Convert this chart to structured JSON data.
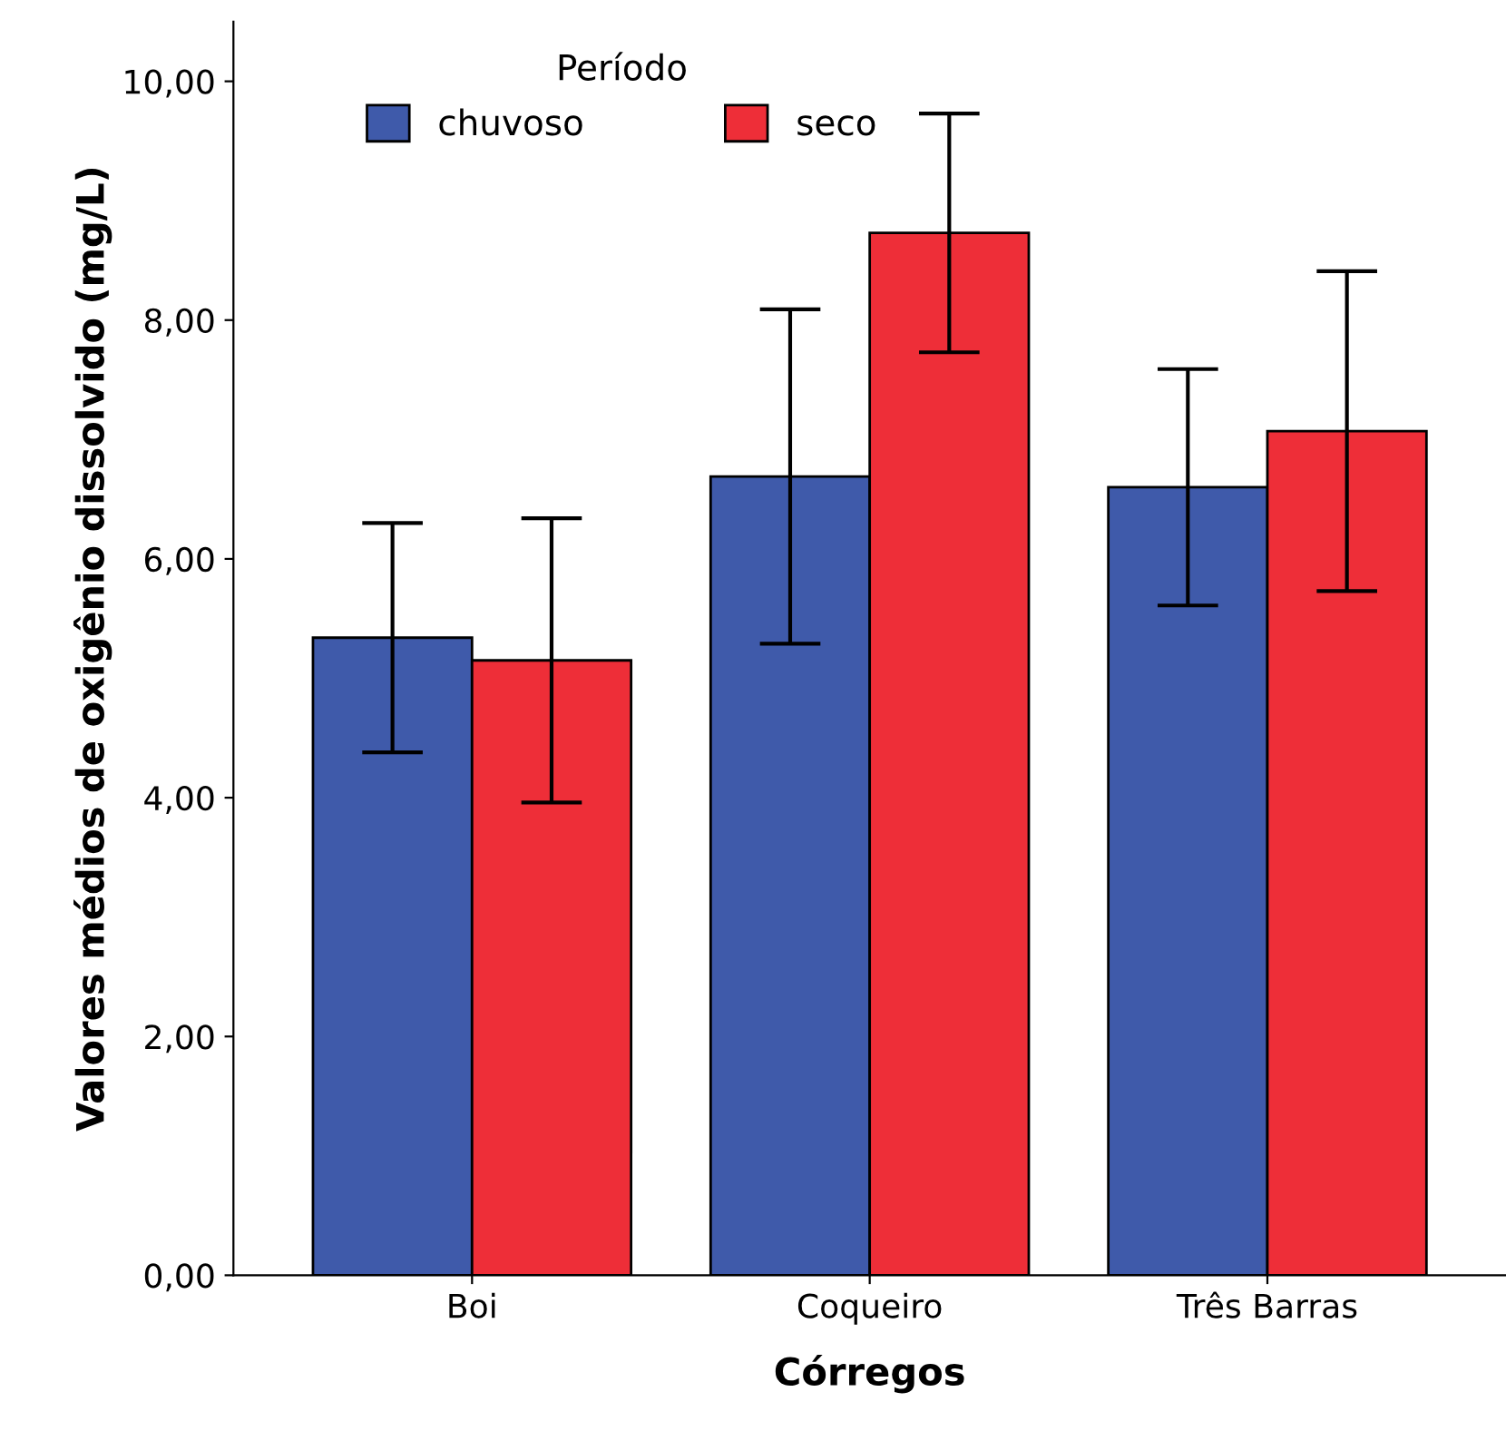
{
  "chart_data": {
    "type": "bar",
    "xlabel": "Córregos",
    "ylabel": "Valores médios de oxigênio dissolvido (mg/L)",
    "legend_title": "Período",
    "categories": [
      "Boi",
      "Coqueiro",
      "Três Barras"
    ],
    "series": [
      {
        "name": "chuvoso",
        "color": "#3f5aaa",
        "values": [
          5.34,
          6.69,
          6.6
        ],
        "errors": [
          0.96,
          1.4,
          0.99
        ]
      },
      {
        "name": "seco",
        "color": "#ee2e38",
        "values": [
          5.15,
          8.73,
          7.07
        ],
        "errors": [
          1.19,
          1.0,
          1.34
        ]
      }
    ],
    "ylim": [
      0,
      10.5
    ],
    "yticks": [
      {
        "value": 0,
        "label": "0,00"
      },
      {
        "value": 2,
        "label": "2,00"
      },
      {
        "value": 4,
        "label": "4,00"
      },
      {
        "value": 6,
        "label": "6,00"
      },
      {
        "value": 8,
        "label": "8,00"
      },
      {
        "value": 10,
        "label": "10,00"
      }
    ],
    "grid": false,
    "legend": "top left"
  }
}
